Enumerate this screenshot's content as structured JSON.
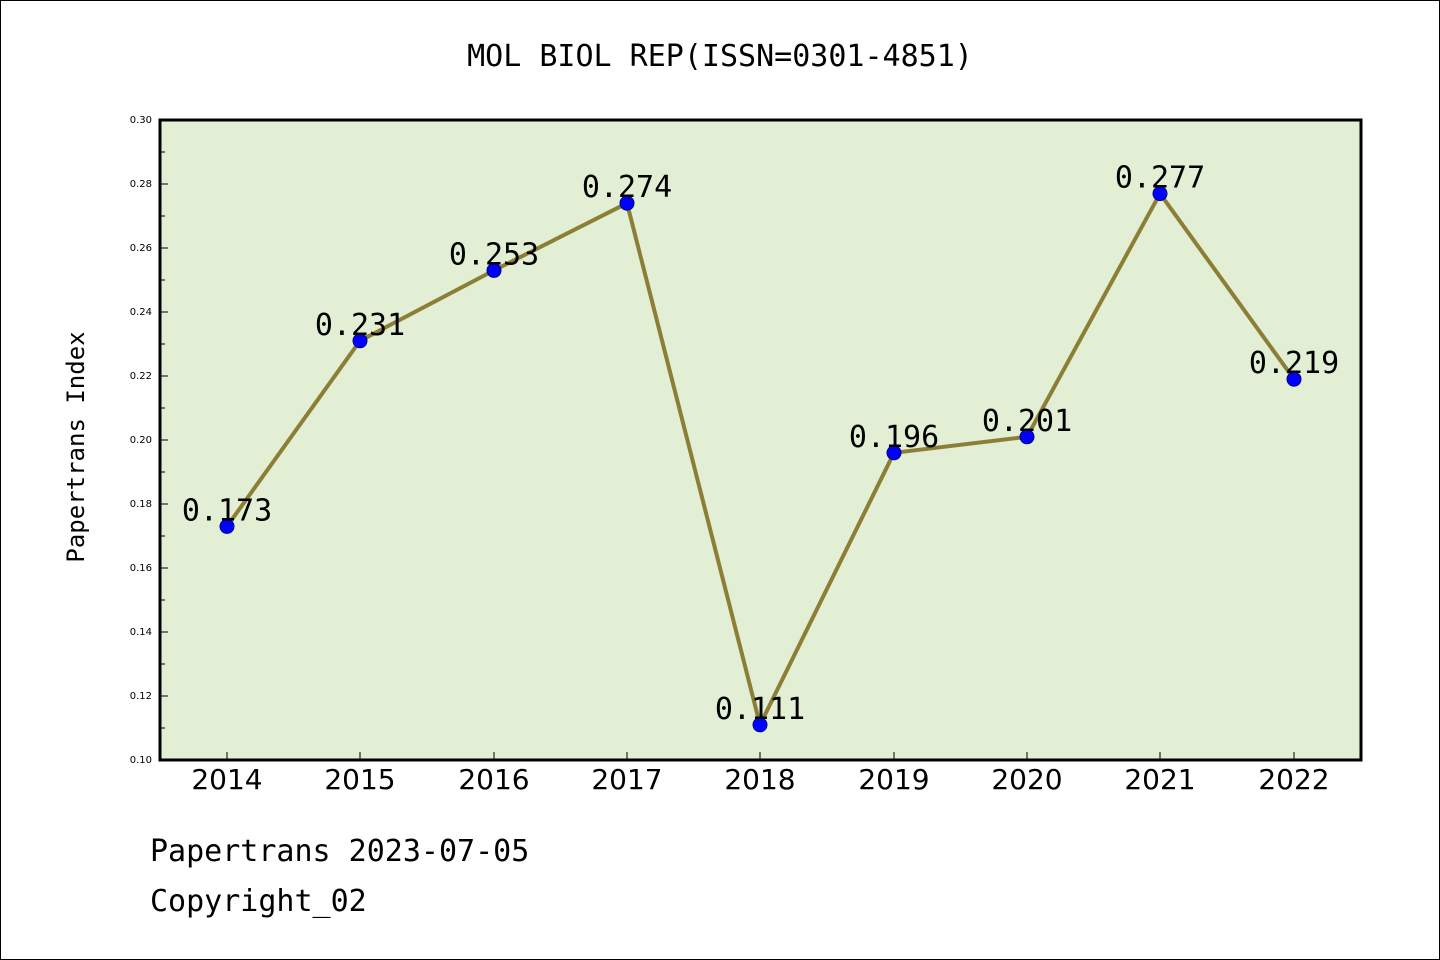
{
  "chart_data": {
    "type": "line",
    "title": "MOL BIOL REP(ISSN=0301-4851)",
    "xlabel": "",
    "ylabel": "Papertrans Index",
    "categories": [
      "2014",
      "2015",
      "2016",
      "2017",
      "2018",
      "2019",
      "2020",
      "2021",
      "2022"
    ],
    "values": [
      0.173,
      0.231,
      0.253,
      0.274,
      0.111,
      0.196,
      0.201,
      0.277,
      0.219
    ],
    "data_labels": [
      "0.173",
      "0.231",
      "0.253",
      "0.274",
      "0.111",
      "0.196",
      "0.201",
      "0.277",
      "0.219"
    ],
    "ylim": [
      0.1,
      0.3
    ],
    "yticks": [
      "0.10",
      "0.12",
      "0.14",
      "0.16",
      "0.18",
      "0.20",
      "0.22",
      "0.24",
      "0.26",
      "0.28",
      "0.30"
    ],
    "grid": false,
    "legend": "none",
    "colors": {
      "plot_background": "#e2efd4",
      "line": "#8c7f35",
      "marker": "#0000ff",
      "marker_edge": "#000080"
    }
  },
  "footer": {
    "line1": "Papertrans 2023-07-05",
    "line2": "Copyright_02"
  }
}
